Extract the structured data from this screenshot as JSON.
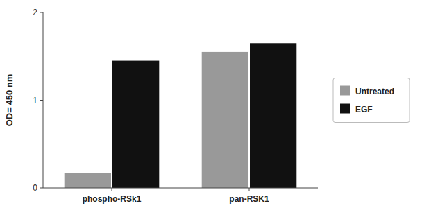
{
  "chart_data": {
    "type": "bar",
    "categories": [
      "phospho-RSk1",
      "pan-RSK1"
    ],
    "series": [
      {
        "name": "Untreated",
        "color": "#999999",
        "values": [
          0.17,
          1.55
        ]
      },
      {
        "name": "EGF",
        "color": "#111111",
        "values": [
          1.45,
          1.65
        ]
      }
    ],
    "ylabel": "OD= 450 nm",
    "ylim": [
      0,
      2
    ],
    "yticks": [
      0,
      1,
      2
    ],
    "legend": "right",
    "grid": false
  }
}
